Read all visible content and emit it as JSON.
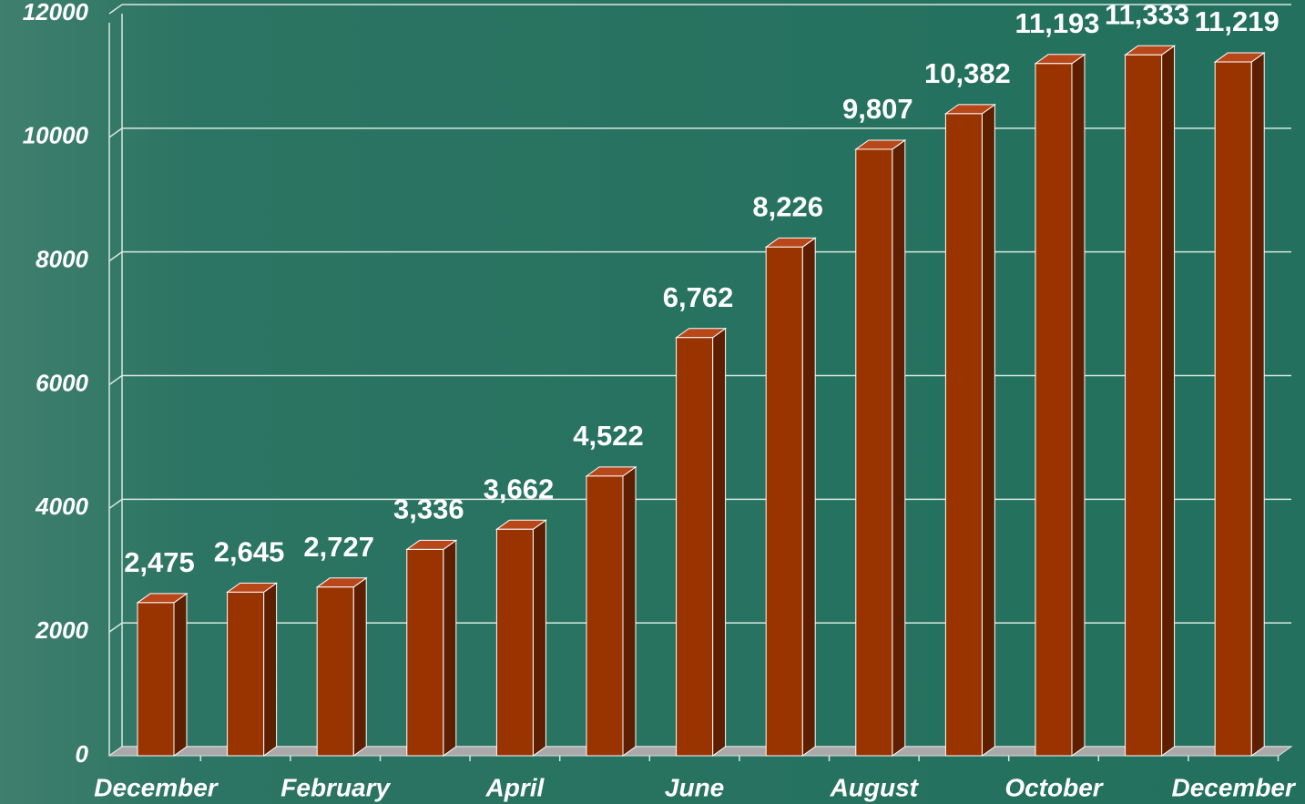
{
  "chart_data": {
    "type": "bar3d",
    "categories": [
      "December",
      null,
      "February",
      null,
      "April",
      null,
      "June",
      null,
      "August",
      null,
      "October",
      null,
      "December"
    ],
    "values": [
      2475,
      2645,
      2727,
      3336,
      3662,
      4522,
      6762,
      8226,
      9807,
      10382,
      11193,
      11333,
      11219
    ],
    "value_labels": [
      "2,475",
      "2,645",
      "2,727",
      "3,336",
      "3,662",
      "4,522",
      "6,762",
      "8,226",
      "9,807",
      "10,382",
      "11,193",
      "11,333",
      "11,219"
    ],
    "color": "#993300",
    "ylim": [
      0,
      12000
    ],
    "yticks": [
      0,
      2000,
      4000,
      6000,
      8000,
      10000,
      12000
    ],
    "grid": true
  }
}
